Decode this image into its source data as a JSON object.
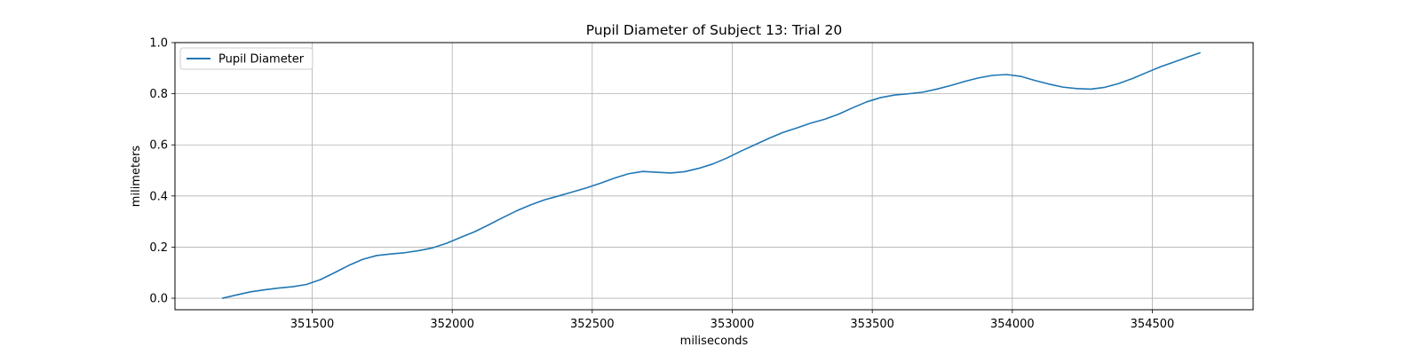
{
  "chart_data": {
    "type": "line",
    "title": "Pupil Diameter of Subject 13: Trial 20",
    "xlabel": "miliseconds",
    "ylabel": "milimeters",
    "xlim": [
      351010,
      354860
    ],
    "ylim": [
      -0.045,
      1.0
    ],
    "xticks": [
      351500,
      352000,
      352500,
      353000,
      353500,
      354000,
      354500
    ],
    "yticks": [
      0.0,
      0.2,
      0.4,
      0.6,
      0.8,
      1.0
    ],
    "xtick_labels": [
      "351500",
      "352000",
      "352500",
      "353000",
      "353500",
      "354000",
      "354500"
    ],
    "ytick_labels": [
      "0.0",
      "0.2",
      "0.4",
      "0.6",
      "0.8",
      "1.0"
    ],
    "grid": true,
    "legend_position": "top-left",
    "series": [
      {
        "name": "Pupil Diameter",
        "color": "#1f77b4",
        "x": [
          351180,
          351230,
          351280,
          351330,
          351380,
          351430,
          351480,
          351530,
          351580,
          351630,
          351680,
          351730,
          351780,
          351830,
          351880,
          351930,
          351980,
          352030,
          352080,
          352130,
          352180,
          352230,
          352280,
          352330,
          352380,
          352430,
          352480,
          352530,
          352580,
          352630,
          352680,
          352730,
          352780,
          352830,
          352880,
          352930,
          352980,
          353030,
          353080,
          353130,
          353180,
          353230,
          353280,
          353330,
          353380,
          353430,
          353480,
          353530,
          353580,
          353630,
          353680,
          353730,
          353780,
          353830,
          353880,
          353930,
          353980,
          354030,
          354080,
          354130,
          354180,
          354230,
          354280,
          354330,
          354380,
          354430,
          354480,
          354530,
          354580,
          354630,
          354670
        ],
        "y": [
          0.0,
          0.013,
          0.025,
          0.033,
          0.04,
          0.045,
          0.054,
          0.073,
          0.1,
          0.128,
          0.152,
          0.167,
          0.173,
          0.178,
          0.186,
          0.197,
          0.215,
          0.238,
          0.26,
          0.287,
          0.315,
          0.342,
          0.365,
          0.385,
          0.4,
          0.416,
          0.432,
          0.45,
          0.47,
          0.487,
          0.496,
          0.493,
          0.49,
          0.495,
          0.508,
          0.525,
          0.548,
          0.575,
          0.6,
          0.625,
          0.648,
          0.666,
          0.685,
          0.7,
          0.72,
          0.745,
          0.768,
          0.785,
          0.795,
          0.8,
          0.806,
          0.818,
          0.832,
          0.848,
          0.862,
          0.872,
          0.875,
          0.868,
          0.852,
          0.838,
          0.826,
          0.82,
          0.818,
          0.825,
          0.84,
          0.86,
          0.883,
          0.906,
          0.925,
          0.945,
          0.96
        ]
      }
    ]
  }
}
